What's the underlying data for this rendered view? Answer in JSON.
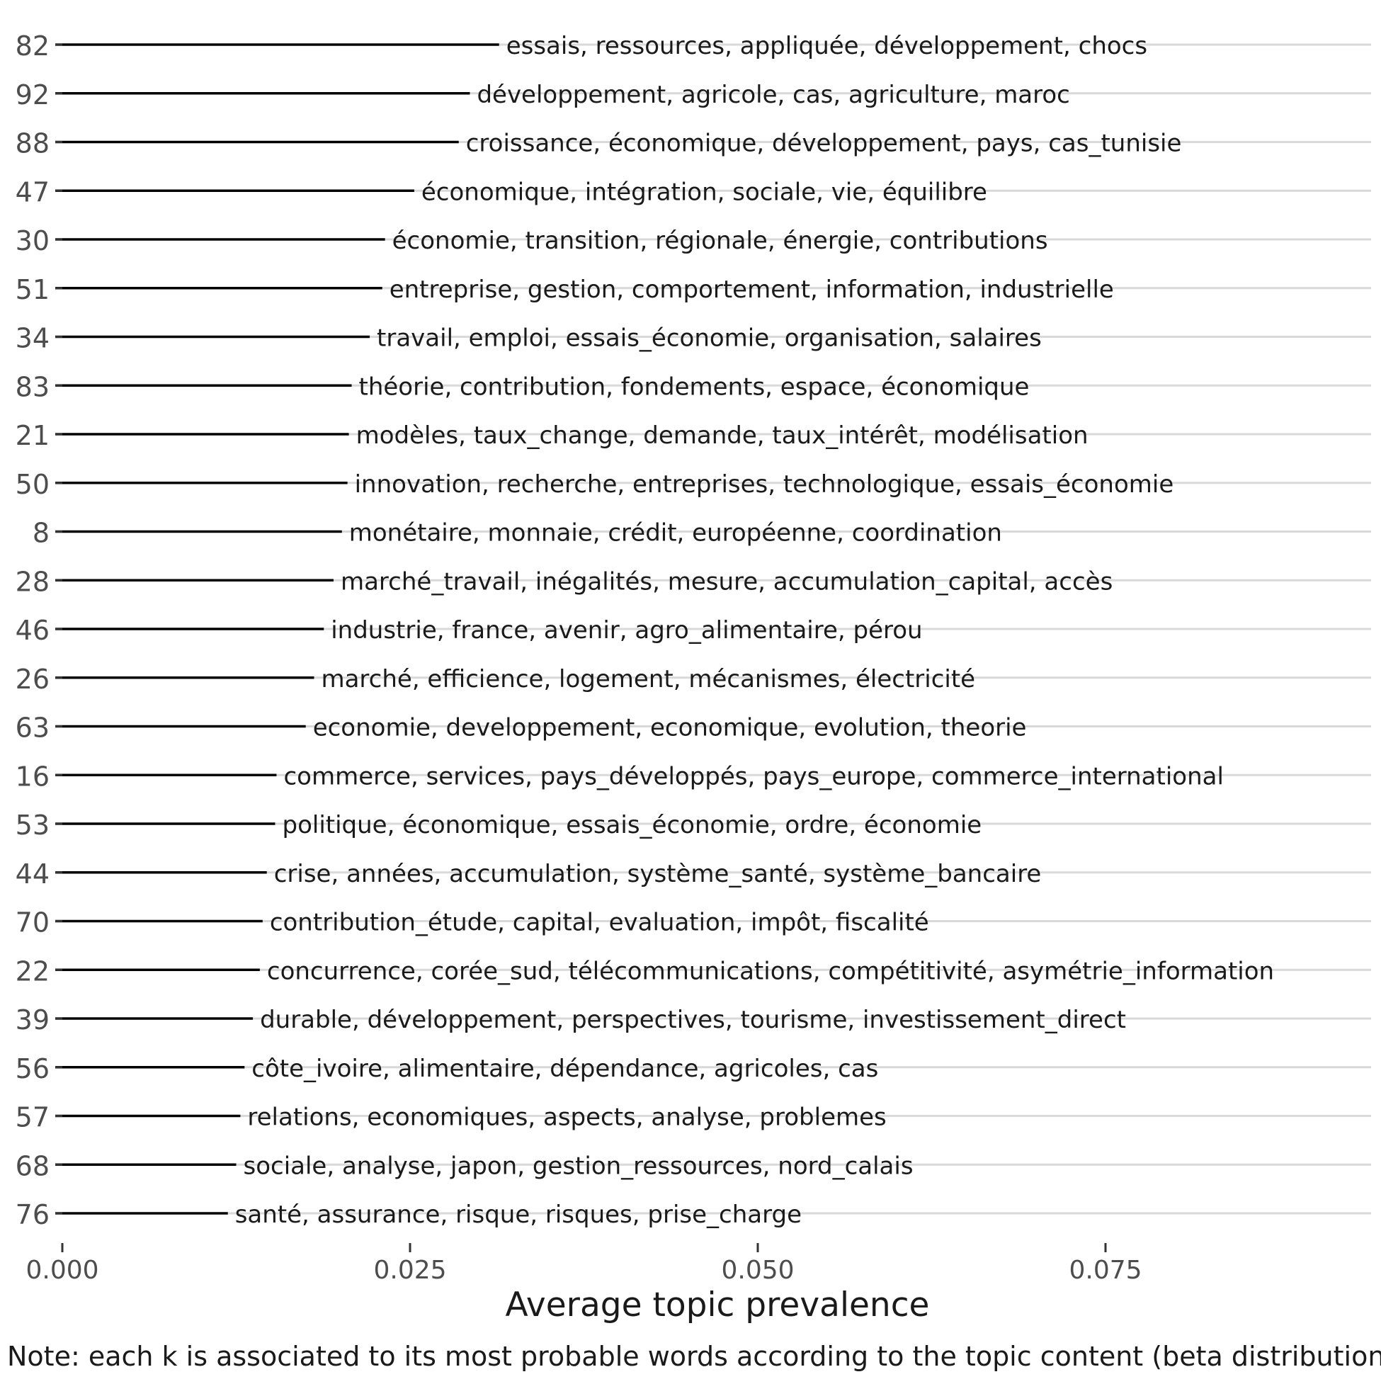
{
  "chart_data": {
    "type": "bar",
    "orientation": "horizontal",
    "xlabel": "Average topic prevalence",
    "note": "Note: each k is associated to its most probable words according to the topic content (beta distribution)",
    "xlim": [
      0,
      0.094
    ],
    "xticks": [
      0.0,
      0.025,
      0.05,
      0.075
    ],
    "xtick_labels": [
      "0.000",
      "0.025",
      "0.050",
      "0.075"
    ],
    "grid": true,
    "colors": {
      "bar": "#000000",
      "grid": "#d9d9d9",
      "tick_text": "#4d4d4d",
      "text": "#1a1a1a"
    },
    "categories": [
      "82",
      "92",
      "88",
      "47",
      "30",
      "51",
      "34",
      "83",
      "21",
      "50",
      "8",
      "28",
      "46",
      "26",
      "63",
      "16",
      "53",
      "44",
      "70",
      "22",
      "39",
      "56",
      "57",
      "68",
      "76"
    ],
    "values": [
      0.0314,
      0.0293,
      0.0285,
      0.0253,
      0.0232,
      0.023,
      0.0221,
      0.0208,
      0.0206,
      0.0205,
      0.0201,
      0.0195,
      0.0188,
      0.0181,
      0.0175,
      0.0154,
      0.0153,
      0.0147,
      0.0144,
      0.0142,
      0.0137,
      0.0131,
      0.0128,
      0.0125,
      0.0119
    ],
    "labels": [
      "essais, ressources, appliquée, développement, chocs",
      "développement, agricole, cas, agriculture, maroc",
      "croissance, économique, développement, pays, cas_tunisie",
      "économique, intégration, sociale, vie, équilibre",
      "économie, transition, régionale, énergie, contributions",
      "entreprise, gestion, comportement, information, industrielle",
      "travail, emploi, essais_économie, organisation, salaires",
      "théorie, contribution, fondements, espace, économique",
      "modèles, taux_change, demande, taux_intérêt, modélisation",
      "innovation, recherche, entreprises, technologique, essais_économie",
      "monétaire, monnaie, crédit, européenne, coordination",
      "marché_travail, inégalités, mesure, accumulation_capital, accès",
      "industrie, france, avenir, agro_alimentaire, pérou",
      "marché, efficience, logement, mécanismes, électricité",
      "economie, developpement, economique, evolution, theorie",
      "commerce, services, pays_développés, pays_europe, commerce_international",
      "politique, économique, essais_économie, ordre, économie",
      "crise, années, accumulation, système_santé, système_bancaire",
      "contribution_étude, capital, evaluation, impôt, fiscalité",
      "concurrence, corée_sud, télécommunications, compétitivité, asymétrie_information",
      "durable, développement, perspectives, tourisme, investissement_direct",
      "côte_ivoire, alimentaire, dépendance, agricoles, cas",
      "relations, economiques, aspects, analyse, problemes",
      "sociale, analyse, japon, gestion_ressources, nord_calais",
      "santé, assurance, risque, risques, prise_charge"
    ]
  }
}
